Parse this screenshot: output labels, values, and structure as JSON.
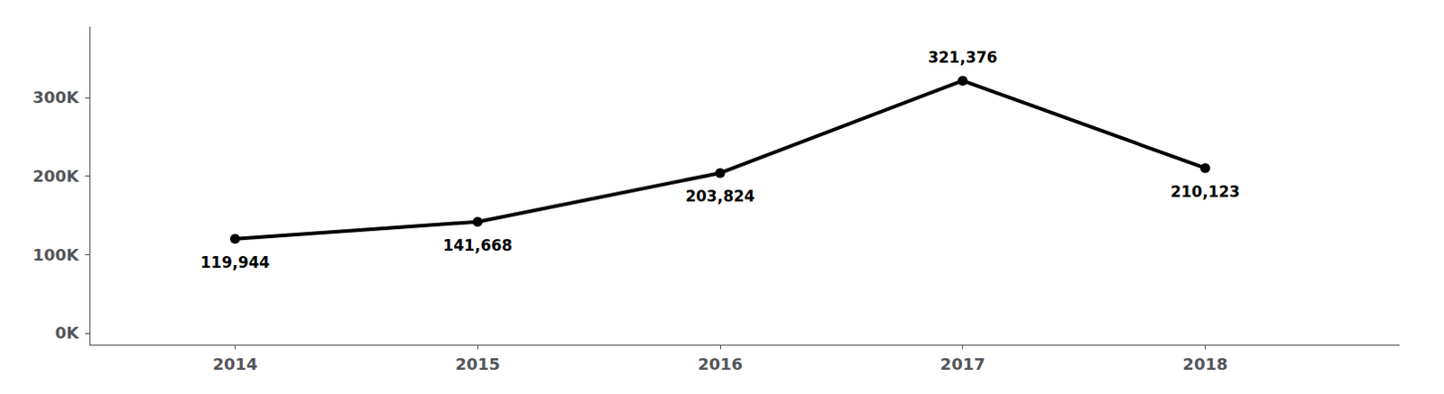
{
  "chart_data": {
    "type": "line",
    "x": [
      2014,
      2015,
      2016,
      2017,
      2018
    ],
    "values": [
      119944,
      141668,
      203824,
      321376,
      210123
    ],
    "value_labels": [
      "119,944",
      "141,668",
      "203,824",
      "321,376",
      "210,123"
    ],
    "data_labels": true,
    "color": "#000000",
    "marker": "circle",
    "xlim": [
      2013.4,
      2018.8
    ],
    "xticks": [
      2014,
      2015,
      2016,
      2017,
      2018
    ],
    "ylim": [
      -15000,
      390000
    ],
    "yticks": [
      {
        "value": 0,
        "label": "0K"
      },
      {
        "value": 100000,
        "label": "100K"
      },
      {
        "value": 200000,
        "label": "200K"
      },
      {
        "value": 300000,
        "label": "300K"
      }
    ],
    "grid": false
  }
}
